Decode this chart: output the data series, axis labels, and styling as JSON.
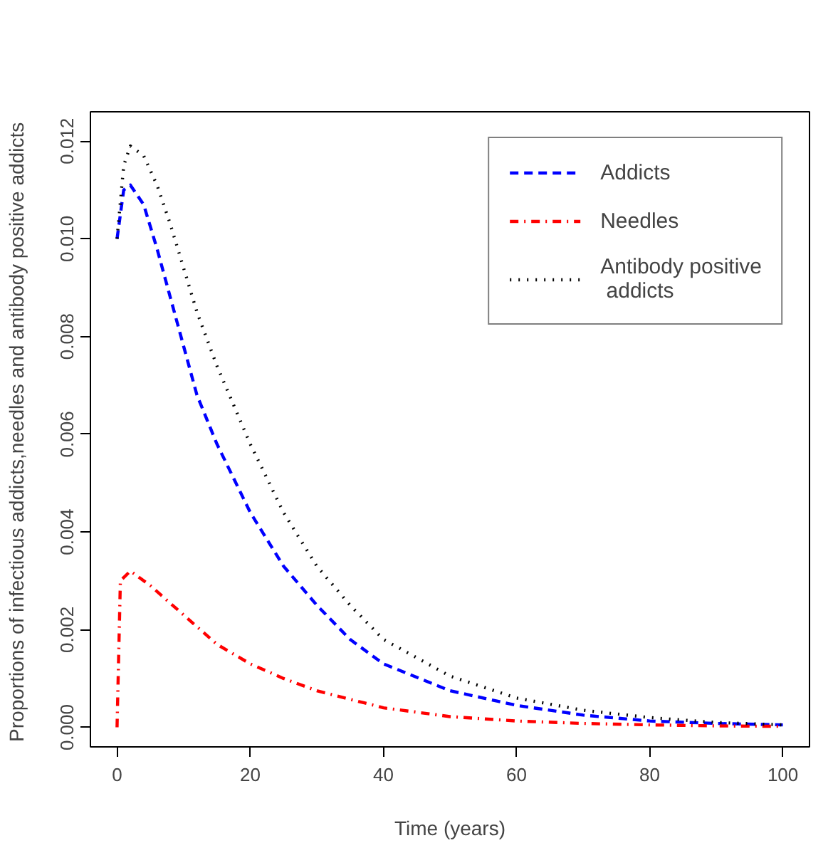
{
  "chart_data": {
    "type": "line",
    "xlabel": "Time (years)",
    "ylabel": "Proportions of infectious addicts,needles and antibody positive  addicts",
    "xlim": [
      -4,
      104
    ],
    "ylim": [
      -0.0004,
      0.0126
    ],
    "xticks": [
      0,
      20,
      40,
      60,
      80,
      100
    ],
    "yticks": [
      {
        "value": 0,
        "label": "0.000"
      },
      {
        "value": 0.002,
        "label": "0.002"
      },
      {
        "value": 0.004,
        "label": "0.004"
      },
      {
        "value": 0.006,
        "label": "0.006"
      },
      {
        "value": 0.008,
        "label": "0.008"
      },
      {
        "value": 0.01,
        "label": "0.010"
      },
      {
        "value": 0.012,
        "label": "0.012"
      }
    ],
    "grid": false,
    "legend": "top right",
    "marker": "none",
    "series": [
      {
        "name": "Addicts",
        "color": "#0000ff",
        "line_style": "dashed",
        "x": [
          0,
          1,
          2,
          4,
          6,
          8,
          10,
          12,
          15,
          20,
          25,
          30,
          35,
          40,
          50,
          60,
          70,
          80,
          90,
          100
        ],
        "values": [
          0.01,
          0.011,
          0.0111,
          0.0107,
          0.0098,
          0.0088,
          0.0078,
          0.0068,
          0.0058,
          0.0044,
          0.0033,
          0.0025,
          0.0018,
          0.0013,
          0.00075,
          0.00045,
          0.00025,
          0.00013,
          8e-05,
          5e-05
        ]
      },
      {
        "name": "Needles",
        "color": "#ff0000",
        "line_style": "dashdot",
        "x": [
          0,
          0.5,
          2,
          5,
          10,
          15,
          20,
          25,
          30,
          40,
          50,
          60,
          70,
          80,
          90,
          100
        ],
        "values": [
          0,
          0.003,
          0.0032,
          0.0029,
          0.0023,
          0.0017,
          0.0013,
          0.001,
          0.00075,
          0.0004,
          0.00022,
          0.00013,
          8e-05,
          5e-05,
          3e-05,
          2e-05
        ]
      },
      {
        "name": "Antibody positive\n addicts",
        "color": "#000000",
        "line_style": "dotted",
        "x": [
          0,
          1,
          2,
          4,
          6,
          8,
          10,
          12,
          15,
          20,
          25,
          30,
          35,
          40,
          50,
          60,
          70,
          80,
          90,
          100
        ],
        "values": [
          0.01,
          0.0115,
          0.0119,
          0.0117,
          0.0111,
          0.0103,
          0.0094,
          0.0085,
          0.0074,
          0.0058,
          0.0044,
          0.0033,
          0.0025,
          0.0018,
          0.00105,
          0.0006,
          0.00035,
          0.0002,
          0.0001,
          5e-05
        ]
      }
    ]
  }
}
